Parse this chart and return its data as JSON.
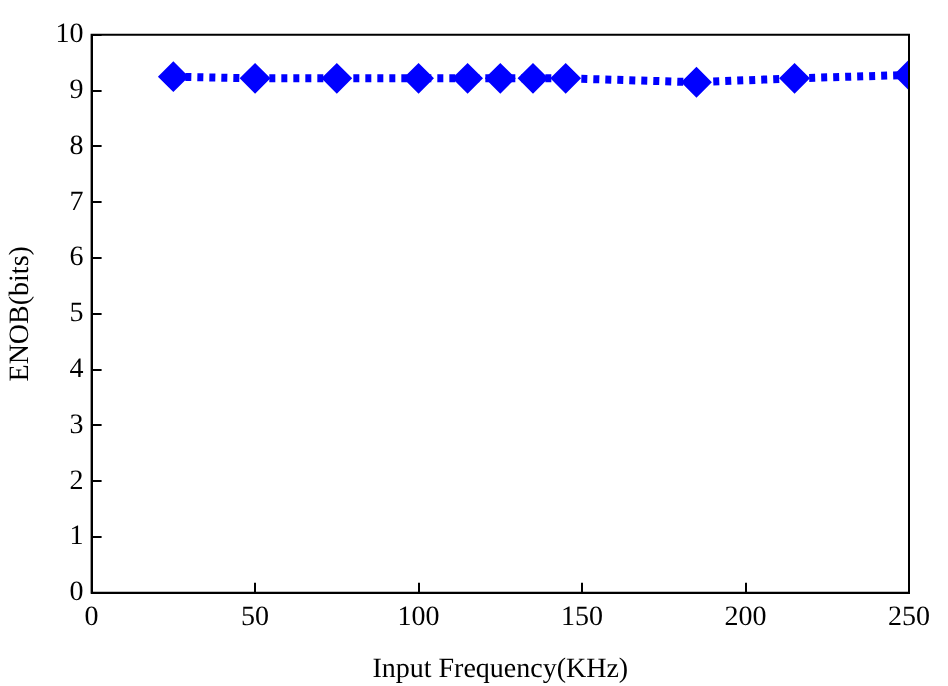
{
  "chart_data": {
    "type": "line",
    "xlabel": "Input Frequency(KHz)",
    "ylabel": "ENOB(bits)",
    "x": [
      25,
      50,
      75,
      100,
      115,
      125,
      135,
      145,
      185,
      215,
      250
    ],
    "series": [
      {
        "color": "#0000ff",
        "values": [
          9.25,
          9.22,
          9.22,
          9.22,
          9.22,
          9.22,
          9.22,
          9.22,
          9.15,
          9.22,
          9.28
        ]
      }
    ],
    "xlim": [
      0,
      250
    ],
    "xticks": [
      0,
      50,
      100,
      150,
      200,
      250
    ],
    "ylim": [
      0,
      10
    ],
    "yticks": [
      0,
      1,
      2,
      3,
      4,
      5,
      6,
      7,
      8,
      9,
      10
    ],
    "grid": false,
    "legend": false,
    "marker": "diamond",
    "line_style": "dotted"
  }
}
